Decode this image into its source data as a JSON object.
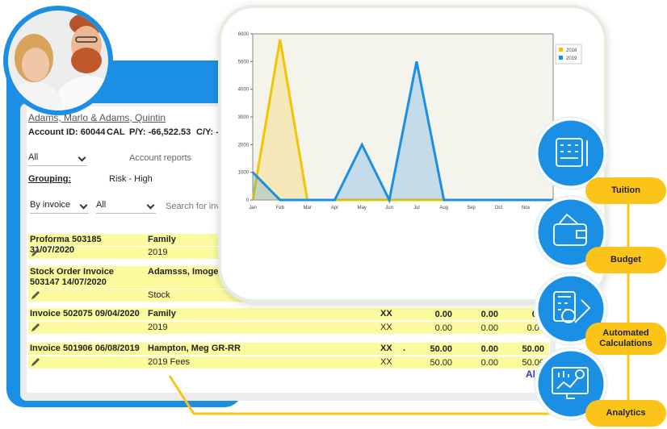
{
  "account": {
    "name": "Adams, Marlo & Adams, Quintin",
    "id": "Account ID: 60044",
    "cal": "CAL",
    "py": "P/Y: -66,522.53",
    "cy": "C/Y: -"
  },
  "filters": {
    "status": "All",
    "reports": "Account reports",
    "grouping_label": "Grouping:",
    "grouping": "Risk - High",
    "by": "By invoice",
    "type": "All",
    "search": "Search for inv"
  },
  "table": {
    "rows": [
      [
        [
          "Proforma 503185 31/07/2020",
          "Family"
        ],
        [
          "2019"
        ]
      ],
      [
        [
          "Stock Order Invoice 503147 14/07/2020",
          "Adamsss, Imogens G"
        ],
        [
          "Stock"
        ]
      ],
      [
        [
          "Invoice 502075 09/04/2020",
          "Family",
          "XX",
          "0.00",
          "0.00",
          "0.0"
        ],
        [
          "2019",
          "XX",
          "0.00",
          "0.00",
          "0.00"
        ]
      ],
      [
        [
          "Invoice 501906 06/08/2019",
          "Hampton, Meg GR-RR",
          "XX",
          ".",
          "50.00",
          "0.00",
          "50.00"
        ],
        [
          "2019 Fees",
          "XX",
          "50.00",
          "0.00",
          "50.00"
        ]
      ]
    ]
  },
  "all_link": "All",
  "features": [
    "Tuition",
    "Budget",
    "Automated Calculations",
    "Analytics"
  ],
  "chart_data": {
    "type": "area",
    "categories": [
      "Jan",
      "Feb",
      "Mar",
      "Apr",
      "May",
      "Jun",
      "Jul",
      "Aug",
      "Sep",
      "Oct",
      "Nov",
      null
    ],
    "series": [
      {
        "name": "2018",
        "color": "#f5c400",
        "values": [
          0,
          5800,
          0,
          0,
          0,
          0,
          0,
          0,
          null,
          null,
          null,
          null
        ]
      },
      {
        "name": "2019",
        "color": "#1a8fe3",
        "values": [
          1000,
          0,
          0,
          0,
          2000,
          0,
          5000,
          0,
          0,
          0,
          0,
          0
        ]
      }
    ],
    "ylim": [
      0,
      6000
    ],
    "yticks": [
      0,
      1000,
      2000,
      3000,
      4000,
      5000,
      6000
    ],
    "legend": "upper-right"
  }
}
